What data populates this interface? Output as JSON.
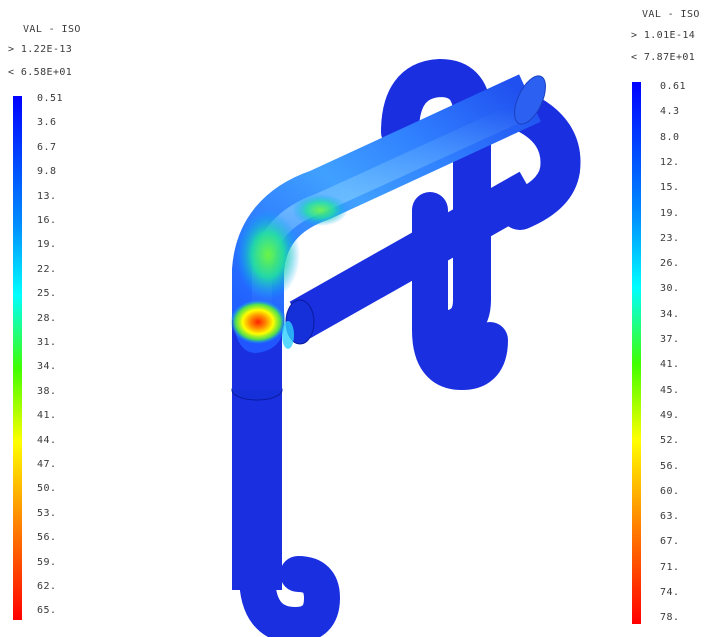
{
  "legend_left": {
    "title": "VAL - ISO",
    "max_line": "> 1.22E-13",
    "min_line": "< 6.58E+01",
    "ticks": [
      "0.51",
      "3.6",
      "6.7",
      "9.8",
      "13.",
      "16.",
      "19.",
      "22.",
      "25.",
      "28.",
      "31.",
      "34.",
      "38.",
      "41.",
      "44.",
      "47.",
      "50.",
      "53.",
      "56.",
      "59.",
      "62.",
      "65."
    ]
  },
  "legend_right": {
    "title": "VAL - ISO",
    "max_line": "> 1.01E-14",
    "min_line": "< 7.87E+01",
    "ticks": [
      "0.61",
      "4.3",
      "8.0",
      "12.",
      "15.",
      "19.",
      "23.",
      "26.",
      "30.",
      "34.",
      "37.",
      "41.",
      "45.",
      "49.",
      "52.",
      "56.",
      "60.",
      "63.",
      "67.",
      "71.",
      "74.",
      "78."
    ]
  },
  "colors": {
    "scale": [
      "#0000ff",
      "#0040ff",
      "#0080ff",
      "#00c0ff",
      "#00ffff",
      "#00ff80",
      "#40ff00",
      "#c0ff00",
      "#ffff00",
      "#ffc000",
      "#ff8000",
      "#ff4000",
      "#ff0000"
    ],
    "pipe_base": "#1a2fe0",
    "pipe_dark": "#0a18b0"
  }
}
